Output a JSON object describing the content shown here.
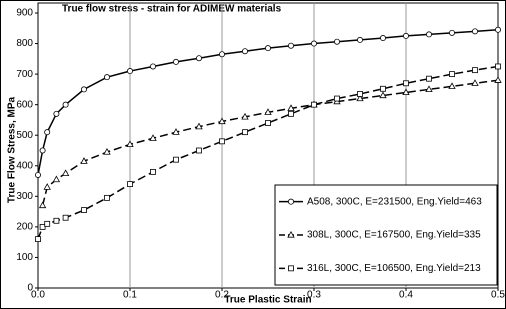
{
  "chart_data": {
    "type": "line",
    "title": "True flow stress - strain for ADIMEW materials",
    "x_label": "True Plastic Strain",
    "y_label": "True Flow Stress, MPa",
    "x": [
      0,
      0.005,
      0.01,
      0.02,
      0.03,
      0.05,
      0.075,
      0.1,
      0.125,
      0.15,
      0.175,
      0.2,
      0.225,
      0.25,
      0.275,
      0.3,
      0.325,
      0.35,
      0.375,
      0.4,
      0.425,
      0.45,
      0.475,
      0.5
    ],
    "series": [
      {
        "name": "A508, 300C, E=231500, Eng.Yield=463",
        "color": "#000000",
        "marker": "circle",
        "dashed": false,
        "values": [
          370,
          450,
          510,
          570,
          600,
          650,
          690,
          710,
          725,
          740,
          752,
          765,
          775,
          785,
          793,
          800,
          806,
          812,
          818,
          825,
          830,
          835,
          840,
          845
        ]
      },
      {
        "name": "308L, 300C, E=167500, Eng.Yield=335",
        "color": "#000000",
        "marker": "triangle",
        "dashed": true,
        "values": [
          null,
          270,
          330,
          355,
          375,
          415,
          445,
          470,
          490,
          510,
          528,
          545,
          560,
          575,
          588,
          600,
          610,
          620,
          630,
          640,
          650,
          660,
          670,
          680
        ]
      },
      {
        "name": "316L, 300C, E=106500, Eng.Yield=213",
        "color": "#000000",
        "marker": "square",
        "dashed": true,
        "values": [
          160,
          200,
          210,
          220,
          230,
          255,
          295,
          340,
          380,
          420,
          450,
          480,
          510,
          540,
          570,
          600,
          620,
          635,
          652,
          670,
          685,
          700,
          713,
          725
        ]
      }
    ],
    "xlim": [
      0,
      0.5
    ],
    "xticks": [
      {
        "value": 0,
        "label": "0.0"
      },
      0.1,
      0.2,
      0.3,
      0.4,
      0.5
    ],
    "ylim": [
      0,
      900
    ],
    "yticks": [
      0,
      100,
      200,
      300,
      400,
      500,
      600,
      700,
      800,
      900
    ],
    "grid": "x",
    "legend": "lower right"
  }
}
